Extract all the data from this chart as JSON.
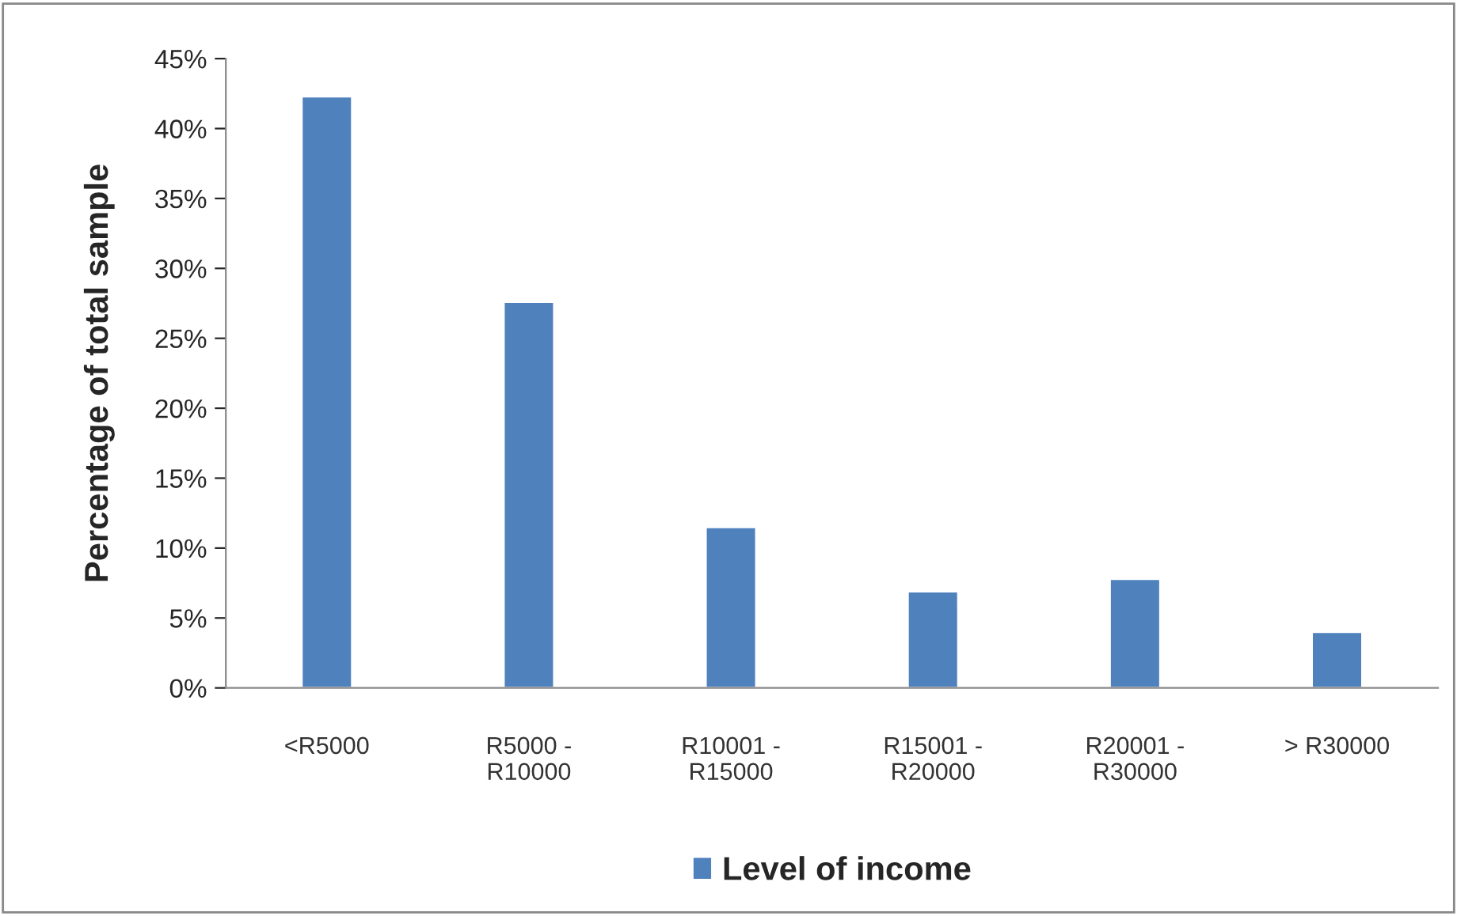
{
  "chart_data": {
    "type": "bar",
    "ylabel": "Percentage of total sample",
    "categories": [
      "<R5000",
      "R5000 -\nR10000",
      "R10001 -\nR15000",
      "R15001 -\nR20000",
      "R20001 -\nR30000",
      "> R30000"
    ],
    "series": [
      {
        "name": "Level of income",
        "color": "#4f81bd",
        "values": [
          42.3,
          27.6,
          11.5,
          6.9,
          7.8,
          4.0
        ]
      }
    ],
    "ylim": [
      0,
      45
    ],
    "yticks": [
      {
        "value": 0,
        "label": "0%"
      },
      {
        "value": 5,
        "label": "5%"
      },
      {
        "value": 10,
        "label": "10%"
      },
      {
        "value": 15,
        "label": "15%"
      },
      {
        "value": 20,
        "label": "20%"
      },
      {
        "value": 25,
        "label": "25%"
      },
      {
        "value": 30,
        "label": "30%"
      },
      {
        "value": 35,
        "label": "35%"
      },
      {
        "value": 40,
        "label": "40%"
      },
      {
        "value": 45,
        "label": "45%"
      }
    ],
    "grid": false,
    "legend": "bottom"
  }
}
